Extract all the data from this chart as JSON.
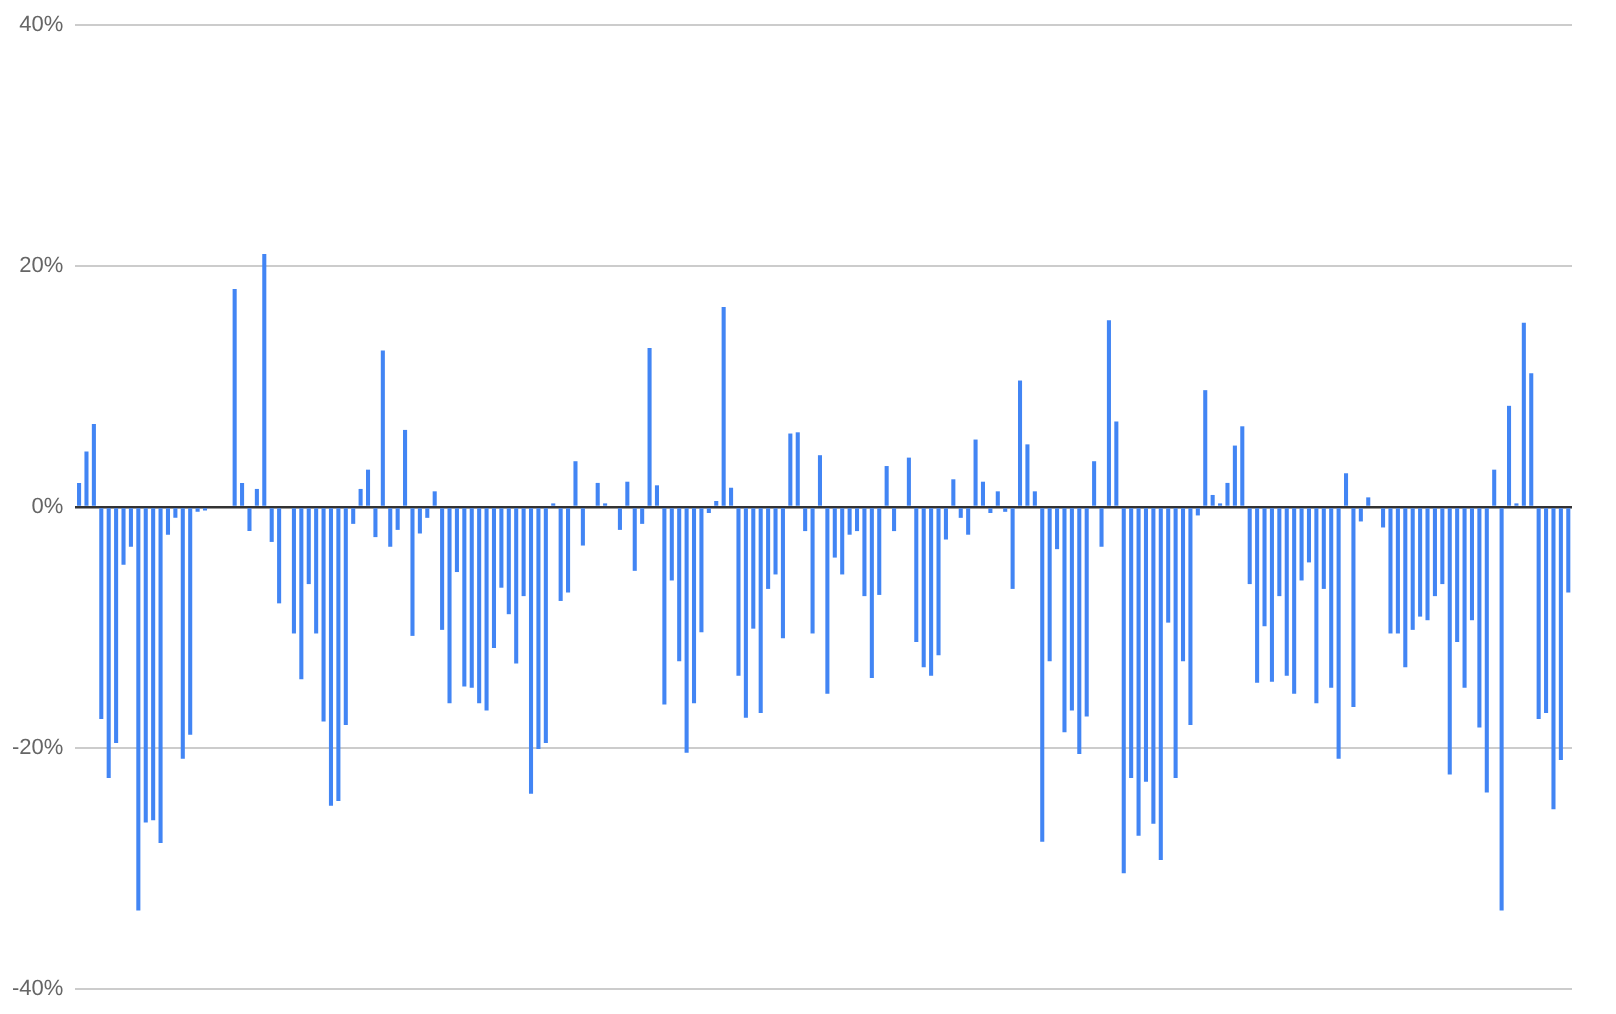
{
  "chart_data": {
    "type": "bar",
    "color": "#4285f4",
    "categories": [
      null,
      null,
      null,
      null,
      null,
      null,
      null,
      null,
      null,
      null,
      null,
      null,
      null,
      null,
      null,
      null,
      null,
      null,
      null,
      null,
      null,
      null,
      null,
      null,
      null,
      null,
      null,
      null,
      null,
      null,
      null,
      null,
      null,
      null,
      null,
      null,
      null,
      null,
      null,
      null,
      null,
      null,
      null,
      null,
      null,
      null,
      null,
      null,
      null,
      null,
      null,
      null,
      null,
      null,
      null,
      null,
      null,
      null,
      null,
      null,
      null,
      null,
      null,
      null,
      null,
      null,
      null,
      null,
      null,
      null,
      null,
      null,
      null,
      null,
      null,
      null,
      null,
      null,
      null,
      null,
      null,
      null,
      null,
      null,
      null,
      null,
      null,
      null,
      null,
      null,
      null,
      null,
      null,
      null,
      null,
      null,
      null,
      null,
      null,
      null,
      null,
      null,
      null,
      null,
      null,
      null,
      null,
      null,
      null,
      null,
      null,
      null,
      null,
      null,
      null,
      null,
      null,
      null,
      null,
      null,
      null,
      null,
      null,
      null,
      null,
      null,
      null,
      null,
      null,
      null,
      null,
      null,
      null,
      null,
      null,
      null,
      null,
      null,
      null,
      null,
      null,
      null,
      null,
      null,
      null,
      null,
      null,
      null,
      null,
      null,
      null,
      null,
      null,
      null,
      null,
      null,
      null,
      null,
      null,
      null,
      null,
      null,
      null,
      null,
      null,
      null,
      null,
      null,
      null,
      null,
      null,
      null,
      null,
      null,
      null,
      null,
      null,
      null,
      null,
      null,
      null,
      null,
      null,
      null,
      null,
      null,
      null,
      null,
      null,
      null,
      null,
      null,
      null,
      null,
      null,
      null,
      null,
      null,
      null,
      null,
      null,
      null
    ],
    "values": [
      2.0,
      4.6,
      6.9,
      -17.6,
      -22.5,
      -19.6,
      -4.8,
      -3.3,
      -33.5,
      -26.2,
      -26.0,
      -27.9,
      -2.3,
      -0.9,
      -20.9,
      -18.9,
      -0.4,
      -0.3,
      0,
      0,
      0,
      18.1,
      2.0,
      -2.0,
      1.5,
      21.0,
      -2.9,
      -8.0,
      0,
      -10.5,
      -14.3,
      -6.4,
      -10.5,
      -17.8,
      -24.8,
      -24.4,
      -18.1,
      -1.4,
      1.5,
      3.1,
      -2.5,
      13.0,
      -3.3,
      -1.9,
      6.4,
      -10.7,
      -2.2,
      -0.9,
      1.3,
      -10.2,
      -16.3,
      -5.4,
      -14.9,
      -15.0,
      -16.3,
      -16.9,
      -11.7,
      -6.7,
      -8.9,
      -13.0,
      -7.4,
      -23.8,
      -20.1,
      -19.6,
      0.3,
      -7.8,
      -7.1,
      3.8,
      -3.2,
      0,
      2.0,
      0.3,
      0,
      -1.9,
      2.1,
      -5.3,
      -1.4,
      13.2,
      1.8,
      -16.4,
      -6.1,
      -12.8,
      -20.4,
      -16.3,
      -10.4,
      -0.5,
      0.5,
      16.6,
      1.6,
      -14.0,
      -17.5,
      -10.1,
      -17.1,
      -6.8,
      -5.6,
      -10.9,
      6.1,
      6.2,
      -2.0,
      -10.5,
      4.3,
      -15.5,
      -4.2,
      -5.6,
      -2.3,
      -2.0,
      -7.4,
      -14.2,
      -7.3,
      3.4,
      -2.0,
      0,
      4.1,
      -11.2,
      -13.3,
      -14.0,
      -12.3,
      -2.7,
      2.3,
      -0.9,
      -2.3,
      5.6,
      2.1,
      -0.5,
      1.3,
      -0.4,
      -6.8,
      10.5,
      5.2,
      1.3,
      -27.8,
      -12.8,
      -3.5,
      -18.7,
      -16.9,
      -20.5,
      -17.4,
      3.8,
      -3.3,
      15.5,
      7.1,
      -30.4,
      -22.5,
      -27.3,
      -22.8,
      -26.3,
      -29.3,
      -9.6,
      -22.5,
      -12.8,
      -18.1,
      -0.7,
      9.7,
      1.0,
      0.3,
      2.0,
      5.1,
      6.7,
      -6.4,
      -14.6,
      -9.9,
      -14.5,
      -7.4,
      -14.0,
      -15.5,
      -6.1,
      -4.6,
      -16.3,
      -6.8,
      -15.0,
      -20.9,
      2.8,
      -16.6,
      -1.2,
      0.8,
      0,
      -1.7,
      -10.5,
      -10.5,
      -13.3,
      -10.2,
      -9.1,
      -9.4,
      -7.4,
      -6.4,
      -22.2,
      -11.2,
      -15.0,
      -9.4,
      -18.3,
      -23.7,
      3.1,
      -33.5,
      8.4,
      0.3,
      15.3,
      11.1,
      -17.6,
      -17.1,
      -25.1,
      -21.0,
      -7.1
    ],
    "ylim": [
      -40,
      40
    ],
    "yticks": [
      {
        "value": -40,
        "label": "-40%"
      },
      {
        "value": -20,
        "label": "-20%"
      },
      {
        "value": 0,
        "label": "0%"
      },
      {
        "value": 20,
        "label": "20%"
      },
      {
        "value": 40,
        "label": "40%"
      }
    ],
    "grid": "y"
  }
}
